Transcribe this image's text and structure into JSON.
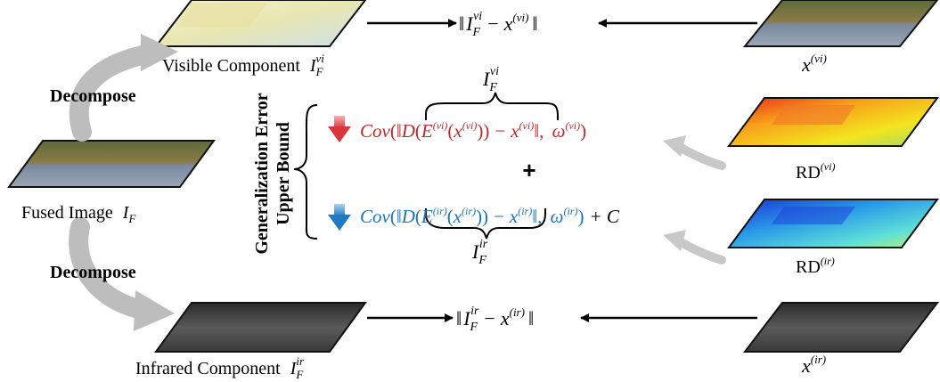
{
  "labels": {
    "visible_component": "Visible Component",
    "infrared_component": "Infrared Component",
    "fused_image": "Fused Image",
    "decompose_top": "Decompose",
    "decompose_bottom": "Decompose",
    "gen_error_line1": "Generalization Error",
    "gen_error_line2": "Upper Bound",
    "rd_vi": "RD",
    "rd_ir": "RD",
    "plus": "+"
  },
  "math": {
    "I": "I",
    "F": "F",
    "vi": "vi",
    "ir": "ir",
    "x": "x",
    "paren_vi": "(vi)",
    "paren_ir": "(ir)",
    "cov": "Cov",
    "D": "D",
    "E": "E",
    "omega": "ω",
    "plus_c": "+ C",
    "norm_bar": "‖",
    "minus": "−"
  },
  "colors": {
    "red": "#c0282d",
    "blue": "#1a75bb",
    "gray_arrow": "#bdbdbd"
  }
}
